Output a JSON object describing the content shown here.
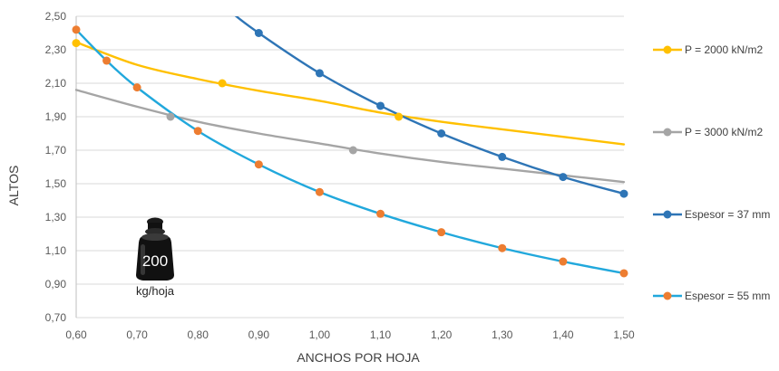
{
  "chart_data": {
    "type": "line",
    "xlabel": "ANCHOS POR HOJA",
    "ylabel": "ALTOS",
    "xlim": [
      0.6,
      1.5
    ],
    "ylim": [
      0.7,
      2.5
    ],
    "x_ticks": [
      "0,60",
      "0,70",
      "0,80",
      "0,90",
      "1,00",
      "1,10",
      "1,20",
      "1,30",
      "1,40",
      "1,50"
    ],
    "y_ticks": [
      "0,70",
      "0,90",
      "1,10",
      "1,30",
      "1,50",
      "1,70",
      "1,90",
      "2,10",
      "2,30",
      "2,50"
    ],
    "grid": "horizontal",
    "legend_position": "right",
    "series": [
      {
        "name": "P = 2000 kN/m2",
        "color": "#FFC000",
        "marker_color": "#FFC000",
        "x": [
          0.6,
          0.84,
          1.13
        ],
        "y": [
          2.34,
          2.1,
          1.9
        ],
        "curve": [
          [
            0.6,
            2.345
          ],
          [
            0.7,
            2.21
          ],
          [
            0.8,
            2.125
          ],
          [
            0.9,
            2.055
          ],
          [
            1.0,
            1.995
          ],
          [
            1.1,
            1.925
          ],
          [
            1.2,
            1.87
          ],
          [
            1.3,
            1.825
          ],
          [
            1.4,
            1.78
          ],
          [
            1.5,
            1.735
          ]
        ]
      },
      {
        "name": "P = 3000 kN/m2",
        "color": "#A5A5A5",
        "marker_color": "#A5A5A5",
        "x": [
          0.755,
          1.055
        ],
        "y": [
          1.9,
          1.7
        ],
        "curve": [
          [
            0.6,
            2.06
          ],
          [
            0.7,
            1.96
          ],
          [
            0.8,
            1.87
          ],
          [
            0.9,
            1.8
          ],
          [
            1.0,
            1.74
          ],
          [
            1.1,
            1.68
          ],
          [
            1.2,
            1.63
          ],
          [
            1.3,
            1.59
          ],
          [
            1.4,
            1.55
          ],
          [
            1.5,
            1.51
          ]
        ]
      },
      {
        "name": "Espesor = 37 mm",
        "color": "#2E75B6",
        "marker_color": "#2E75B6",
        "x": [
          0.9,
          1.0,
          1.1,
          1.2,
          1.3,
          1.4,
          1.5
        ],
        "y": [
          2.4,
          2.16,
          1.965,
          1.8,
          1.66,
          1.54,
          1.44
        ],
        "curve": [
          [
            0.8,
            2.71
          ],
          [
            0.85,
            2.54
          ],
          [
            0.9,
            2.4
          ],
          [
            1.0,
            2.16
          ],
          [
            1.1,
            1.965
          ],
          [
            1.2,
            1.8
          ],
          [
            1.3,
            1.66
          ],
          [
            1.4,
            1.54
          ],
          [
            1.5,
            1.44
          ]
        ]
      },
      {
        "name": "Espesor = 55 mm",
        "color": "#21A8DC",
        "marker_color": "#ED7D31",
        "x": [
          0.6,
          0.65,
          0.7,
          0.8,
          0.9,
          1.0,
          1.1,
          1.2,
          1.3,
          1.4,
          1.5
        ],
        "y": [
          2.42,
          2.235,
          2.075,
          1.815,
          1.615,
          1.45,
          1.32,
          1.21,
          1.115,
          1.035,
          0.965
        ],
        "curve": [
          [
            0.6,
            2.42
          ],
          [
            0.65,
            2.235
          ],
          [
            0.7,
            2.075
          ],
          [
            0.8,
            1.815
          ],
          [
            0.9,
            1.615
          ],
          [
            1.0,
            1.45
          ],
          [
            1.1,
            1.32
          ],
          [
            1.2,
            1.21
          ],
          [
            1.3,
            1.115
          ],
          [
            1.4,
            1.035
          ],
          [
            1.5,
            0.965
          ]
        ]
      }
    ],
    "annotation": {
      "weight_value": "200",
      "weight_unit": "kg/hoja",
      "icon": "weight-icon"
    }
  }
}
